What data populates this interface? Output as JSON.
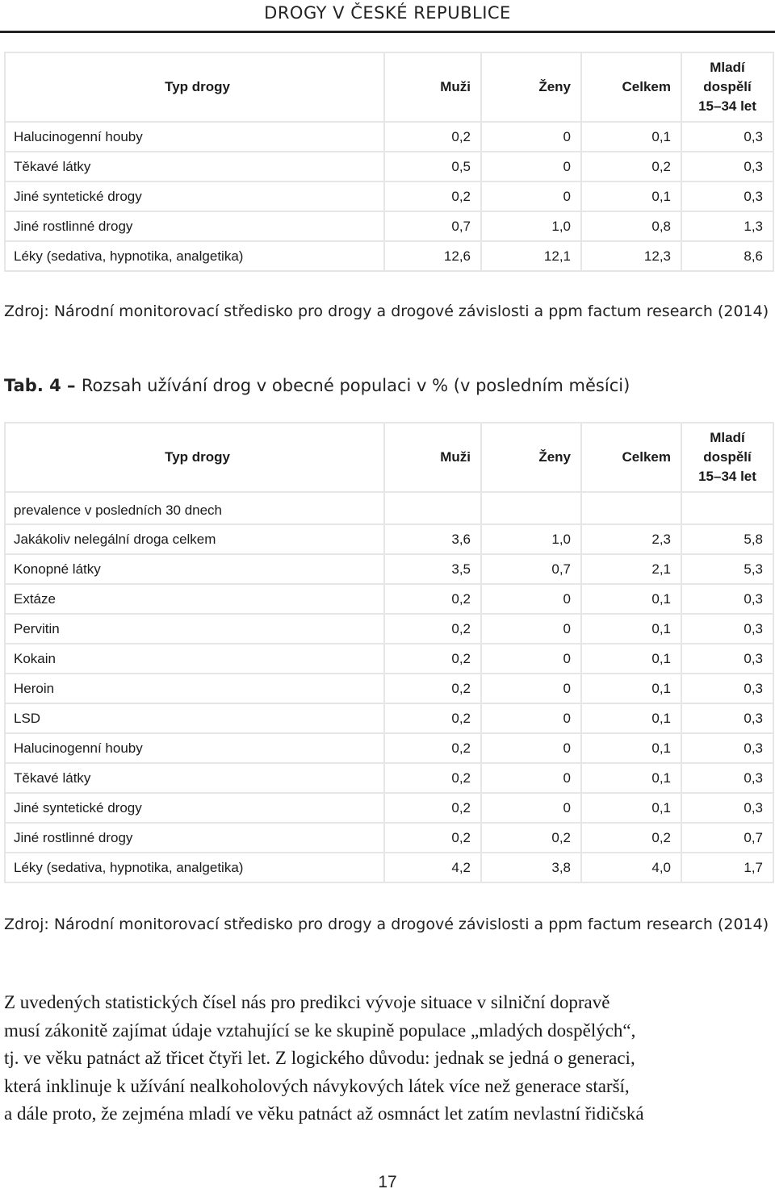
{
  "header": {
    "title": "DROGY V ČESKÉ REPUBLICE"
  },
  "table3": {
    "columns": [
      "Typ drogy",
      "Muži",
      "Ženy",
      "Celkem",
      "Mladí",
      "dospělí",
      "15–34 let"
    ],
    "rows": [
      [
        "Halucinogenní houby",
        "0,2",
        "0",
        "0,1",
        "0,3"
      ],
      [
        "Těkavé látky",
        "0,5",
        "0",
        "0,2",
        "0,3"
      ],
      [
        "Jiné syntetické drogy",
        "0,2",
        "0",
        "0,1",
        "0,3"
      ],
      [
        "Jiné rostlinné drogy",
        "0,7",
        "1,0",
        "0,8",
        "1,3"
      ],
      [
        "Léky (sedativa, hypnotika, analgetika)",
        "12,6",
        "12,1",
        "12,3",
        "8,6"
      ]
    ]
  },
  "source1": "Zdroj: Národní monitorovací středisko pro drogy a drogové závislosti a ppm factum research (2014)",
  "caption": {
    "label": "Tab. 4",
    "dash": " – ",
    "text": "Rozsah užívání drog v obecné populaci v % (v posledním měsíci)"
  },
  "table4": {
    "columns": [
      "Typ drogy",
      "Muži",
      "Ženy",
      "Celkem",
      "Mladí",
      "dospělí",
      "15–34 let"
    ],
    "subheader": "prevalence v posledních 30 dnech",
    "rows": [
      [
        "Jakákoliv nelegální droga celkem",
        "3,6",
        "1,0",
        "2,3",
        "5,8"
      ],
      [
        "Konopné látky",
        "3,5",
        "0,7",
        "2,1",
        "5,3"
      ],
      [
        "Extáze",
        "0,2",
        "0",
        "0,1",
        "0,3"
      ],
      [
        "Pervitin",
        "0,2",
        "0",
        "0,1",
        "0,3"
      ],
      [
        "Kokain",
        "0,2",
        "0",
        "0,1",
        "0,3"
      ],
      [
        "Heroin",
        "0,2",
        "0",
        "0,1",
        "0,3"
      ],
      [
        "LSD",
        "0,2",
        "0",
        "0,1",
        "0,3"
      ],
      [
        "Halucinogenní houby",
        "0,2",
        "0",
        "0,1",
        "0,3"
      ],
      [
        "Těkavé látky",
        "0,2",
        "0",
        "0,1",
        "0,3"
      ],
      [
        "Jiné syntetické drogy",
        "0,2",
        "0",
        "0,1",
        "0,3"
      ],
      [
        "Jiné rostlinné drogy",
        "0,2",
        "0,2",
        "0,2",
        "0,7"
      ],
      [
        "Léky (sedativa, hypnotika, analgetika)",
        "4,2",
        "3,8",
        "4,0",
        "1,7"
      ]
    ]
  },
  "source2": "Zdroj: Národní monitorovací středisko pro drogy a drogové závislosti a ppm factum research (2014)",
  "paragraph": [
    "Z uvedených statistických čísel nás pro predikci vývoje situace v silniční dopravě",
    "musí zákonitě zajímat údaje vztahující se ke skupině populace „mladých dospělých“,",
    "tj. ve věku patnáct až třicet čtyři let. Z logického důvodu: jednak se jedná o generaci,",
    "která inklinuje k užívání nealkoholových návykových látek více než generace starší,",
    "a dále proto, že zejména mladí ve věku patnáct až osmnáct let zatím nevlastní řidičská"
  ],
  "page_number": "17"
}
